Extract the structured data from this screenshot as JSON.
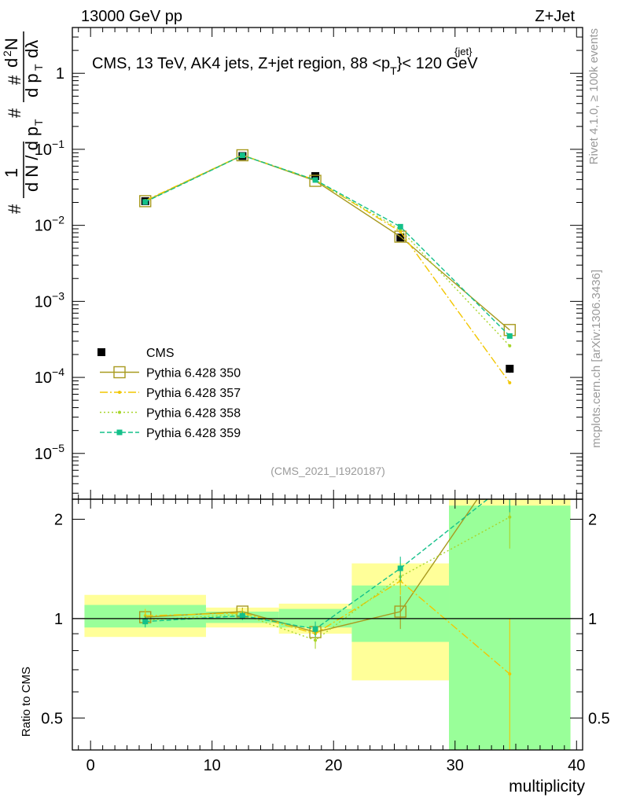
{
  "header": {
    "left": "13000 GeV pp",
    "right": "Z+Jet"
  },
  "side": {
    "rivet": "Rivet 4.1.0, ≥ 100k events",
    "mcplots": "mcplots.cern.ch [arXiv:1306.3436]"
  },
  "chart_data": {
    "type": "line",
    "title": "CMS, 13 TeV, AK4 jets, Z+jet region, 88 <p_T^{jet}< 120 GeV",
    "title_parts": {
      "prefix": "CMS, 13 TeV, AK4 jets, Z+jet region, 88 <p",
      "sub": "T",
      "sup": "{jet}",
      "suffix": "}< 120 GeV"
    },
    "analysis_id": "(CMS_2021_I1920187)",
    "xlabel": "multiplicity",
    "ylabel_main": "1/dN/dp_T  # d²N / # dp_T dλ",
    "ylabel_ratio": "Ratio to CMS",
    "xlim": [
      -1.5,
      40.5
    ],
    "ylim_main": [
      2.5e-06,
      4
    ],
    "ylim_ratio": [
      0.4,
      2.3
    ],
    "x_ticks": [
      0,
      10,
      20,
      30,
      40
    ],
    "x_tick_labels": [
      "0",
      "10",
      "20",
      "30",
      "40"
    ],
    "y_main_ticks": [
      {
        "v": 1,
        "base": "1",
        "exp": ""
      },
      {
        "v": 0.1,
        "base": "10",
        "exp": "−1"
      },
      {
        "v": 0.01,
        "base": "10",
        "exp": "−2"
      },
      {
        "v": 0.001,
        "base": "10",
        "exp": "−3"
      },
      {
        "v": 0.0001,
        "base": "10",
        "exp": "−4"
      },
      {
        "v": 1e-05,
        "base": "10",
        "exp": "−5"
      }
    ],
    "y_ratio_ticks": [
      {
        "v": 0.5,
        "label": "0.5"
      },
      {
        "v": 1,
        "label": "1"
      },
      {
        "v": 2,
        "label": "2"
      }
    ],
    "bins": [
      {
        "lo": -0.5,
        "hi": 9.5,
        "x": 4.5
      },
      {
        "lo": 9.5,
        "hi": 15.5,
        "x": 12.5
      },
      {
        "lo": 15.5,
        "hi": 21.5,
        "x": 18.5
      },
      {
        "lo": 21.5,
        "hi": 29.5,
        "x": 25.5
      },
      {
        "lo": 29.5,
        "hi": 39.5,
        "x": 34.5
      }
    ],
    "data": {
      "name": "CMS",
      "values": [
        0.0208,
        0.0815,
        0.0445,
        0.0069,
        0.00013
      ],
      "errors": [
        0.0007,
        0.0015,
        0.0015,
        0.0004,
        1.5e-05
      ]
    },
    "ratio_bands": {
      "yellow": [
        [
          0.88,
          1.18
        ],
        [
          0.94,
          1.08
        ],
        [
          0.9,
          1.11
        ],
        [
          0.65,
          1.47
        ],
        [
          0.3,
          2.3
        ]
      ],
      "green": [
        [
          0.94,
          1.1
        ],
        [
          0.97,
          1.05
        ],
        [
          0.94,
          1.07
        ],
        [
          0.85,
          1.26
        ],
        [
          0.3,
          2.2
        ]
      ]
    },
    "series": [
      {
        "name": "Pythia 6.428 350",
        "color": "#a89a1f",
        "dash": "",
        "marker": "square-open",
        "values": [
          0.0208,
          0.0835,
          0.0385,
          0.0071,
          0.00042
        ],
        "ratio": [
          1.01,
          1.05,
          0.91,
          1.05,
          3.2
        ],
        "ratio_err": [
          0.04,
          0.03,
          0.04,
          0.12,
          0.6
        ]
      },
      {
        "name": "Pythia 6.428 357",
        "color": "#f2c600",
        "dash": "10,3,2,3",
        "marker": "dot",
        "values": [
          0.0212,
          0.0838,
          0.0395,
          0.0083,
          8.5e-05
        ],
        "ratio": [
          1.02,
          1.04,
          0.9,
          1.3,
          0.68
        ],
        "ratio_err": [
          0.05,
          0.03,
          0.06,
          0.12,
          0.32
        ]
      },
      {
        "name": "Pythia 6.428 358",
        "color": "#a8d52a",
        "dash": "2,3",
        "marker": "dot",
        "values": [
          0.0205,
          0.0833,
          0.039,
          0.0088,
          0.00026
        ],
        "ratio": [
          0.99,
          1.03,
          0.86,
          1.34,
          2.03
        ],
        "ratio_err": [
          0.04,
          0.03,
          0.05,
          0.1,
          0.4
        ]
      },
      {
        "name": "Pythia 6.428 359",
        "color": "#14c08a",
        "dash": "6,3",
        "marker": "square-filled",
        "values": [
          0.0203,
          0.0832,
          0.0395,
          0.0096,
          0.00035
        ],
        "ratio": [
          0.98,
          1.02,
          0.93,
          1.42,
          2.6
        ],
        "ratio_err": [
          0.04,
          0.03,
          0.05,
          0.12,
          0.5
        ]
      }
    ]
  }
}
